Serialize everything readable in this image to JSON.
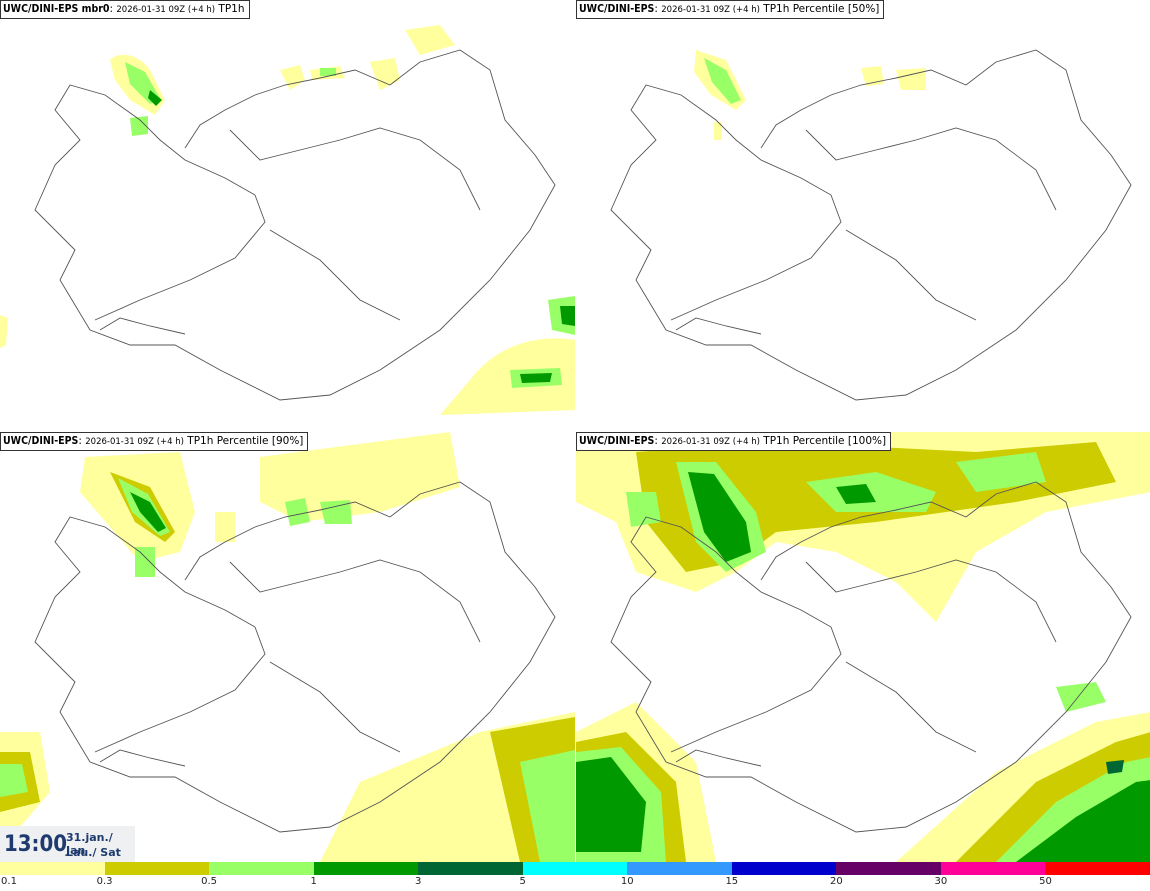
{
  "panels": [
    {
      "model": "UWC/DINI-EPS mbr0",
      "run": "2026-01-31 09Z (+4 h)",
      "field": "TP1h"
    },
    {
      "model": "UWC/DINI-EPS",
      "run": "2026-01-31 09Z (+4 h)",
      "field": "TP1h Percentile [50%]"
    },
    {
      "model": "UWC/DINI-EPS",
      "run": "2026-01-31 09Z (+4 h)",
      "field": "TP1h Percentile [90%]"
    },
    {
      "model": "UWC/DINI-EPS",
      "run": "2026-01-31 09Z (+4 h)",
      "field": "TP1h Percentile [100%]"
    }
  ],
  "valid_time": {
    "time": "13:00",
    "date": "31.jan./ Jan",
    "day": "Lau./ Sat"
  },
  "legend": {
    "colors": [
      "#ffff9e",
      "#cccc00",
      "#99ff66",
      "#009900",
      "#006633",
      "#00ffff",
      "#3399ff",
      "#0000cc",
      "#660066",
      "#ff0099",
      "#ff0000"
    ],
    "labels": [
      "0.1",
      "0.3",
      "0.5",
      "1",
      "3",
      "5",
      "10",
      "15",
      "20",
      "30",
      "50"
    ]
  }
}
